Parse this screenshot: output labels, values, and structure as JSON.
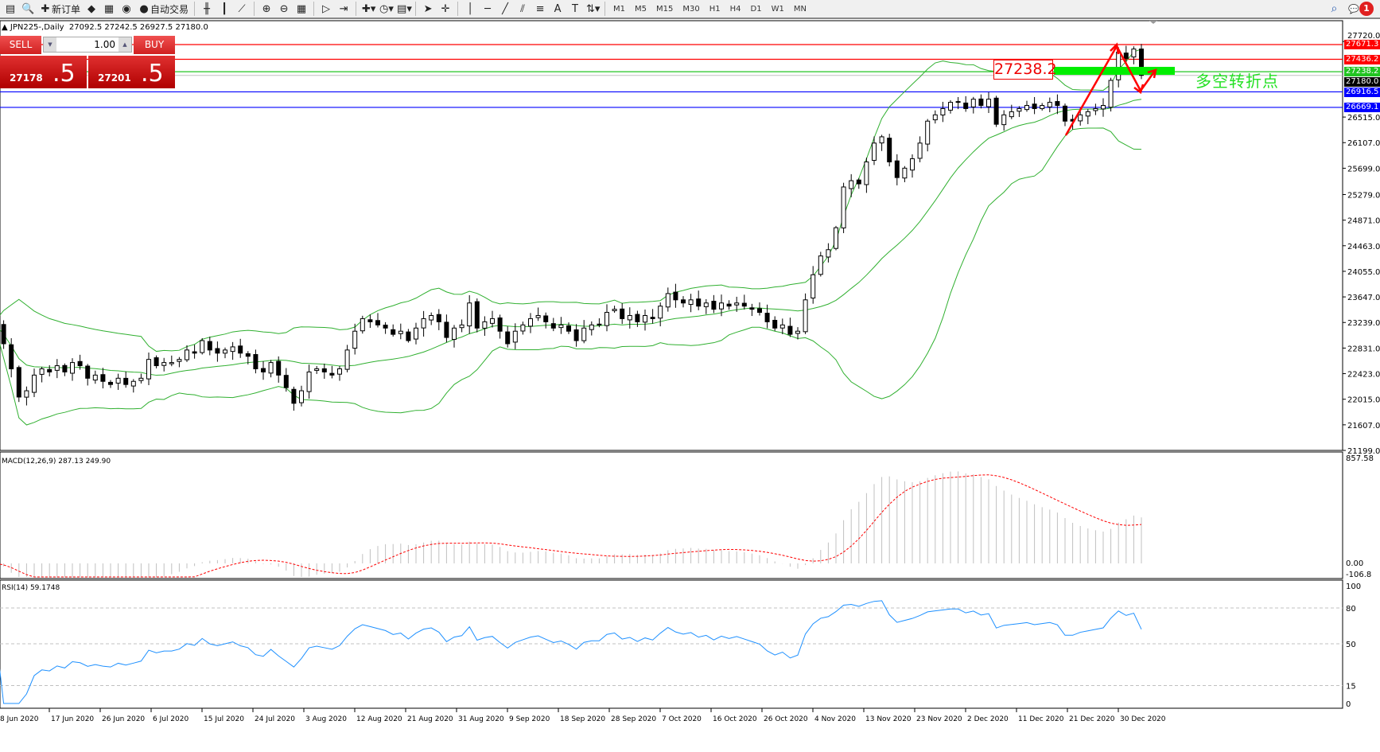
{
  "toolbar": {
    "icons": [
      {
        "name": "new-chart-icon",
        "glyph": "▤"
      },
      {
        "name": "data-window-icon",
        "glyph": "🔍"
      },
      {
        "name": "new-order-icon",
        "glyph": "✚",
        "label": "新订单"
      },
      {
        "name": "metaeditor-icon",
        "glyph": "◆"
      },
      {
        "name": "navigator-icon",
        "glyph": "▦"
      },
      {
        "name": "signals-icon",
        "glyph": "◉"
      },
      {
        "name": "auto-trading-icon",
        "glyph": "●",
        "label": "自动交易"
      },
      {
        "sep": true
      },
      {
        "name": "bar-chart-icon",
        "glyph": "╫"
      },
      {
        "name": "candlestick-icon",
        "glyph": "┃"
      },
      {
        "name": "line-chart-icon",
        "glyph": "⟋"
      },
      {
        "sep": true
      },
      {
        "name": "zoom-in-icon",
        "glyph": "⊕"
      },
      {
        "name": "zoom-out-icon",
        "glyph": "⊖"
      },
      {
        "name": "tile-windows-icon",
        "glyph": "▦"
      },
      {
        "sep": true
      },
      {
        "name": "autoscroll-icon",
        "glyph": "▷"
      },
      {
        "name": "chart-shift-icon",
        "glyph": "⇥"
      },
      {
        "sep": true
      },
      {
        "name": "indicators-icon",
        "glyph": "✚▾"
      },
      {
        "name": "periods-icon",
        "glyph": "◷▾"
      },
      {
        "name": "templates-icon",
        "glyph": "▤▾"
      },
      {
        "sep": true
      },
      {
        "name": "cursor-icon",
        "glyph": "➤"
      },
      {
        "name": "crosshair-icon",
        "glyph": "✛"
      },
      {
        "sep": true
      },
      {
        "name": "vertical-line-icon",
        "glyph": "│"
      },
      {
        "name": "horizontal-line-icon",
        "glyph": "─"
      },
      {
        "name": "trendline-icon",
        "glyph": "╱"
      },
      {
        "name": "equidistant-channel-icon",
        "glyph": "⫽"
      },
      {
        "name": "fibonacci-icon",
        "glyph": "≡"
      },
      {
        "name": "text-icon",
        "glyph": "A"
      },
      {
        "name": "text-label-icon",
        "glyph": "T"
      },
      {
        "name": "arrows-icon",
        "glyph": "⇅▾"
      },
      {
        "sep": true
      }
    ],
    "timeframes": [
      "M1",
      "M5",
      "M15",
      "M30",
      "H1",
      "H4",
      "D1",
      "W1",
      "MN"
    ],
    "notification_count": "1"
  },
  "chart": {
    "title": "JPN225-,Daily  27092.5 27242.5 26927.5 27180.0",
    "trade_panel": {
      "sell_label": "SELL",
      "buy_label": "BUY",
      "lot": "1.00",
      "sell_big": "27178",
      "sell_small": ".5",
      "buy_big": "27201",
      "buy_small": ".5"
    },
    "annotation_label": "27238.2",
    "annotation_text": "多空转折点",
    "hlines": [
      {
        "price": 27671.3,
        "label": "27671.3",
        "color": "#ff0000"
      },
      {
        "price": 27436.2,
        "label": "27436.2",
        "color": "#ff0000"
      },
      {
        "price": 27238.2,
        "label": "27238.2",
        "color": "#22c422"
      },
      {
        "price": 26916.5,
        "label": "26916.5",
        "color": "#0000ff"
      },
      {
        "price": 26669.1,
        "label": "26669.1",
        "color": "#0000ff"
      }
    ],
    "bid_line": {
      "price": 27180.0,
      "label": "27180.0",
      "color": "#c0c0c0"
    },
    "macd_label": "MACD(12,26,9) 287.13 249.90",
    "rsi_label": "RSI(14) 59.1748"
  },
  "chart_data": {
    "type": "candlestick",
    "symbol": "JPN225-",
    "timeframe": "Daily",
    "last_ohlc": {
      "open": 27092.5,
      "high": 27242.5,
      "low": 26927.5,
      "close": 27180.0
    },
    "close": [
      23200,
      22900,
      22500,
      22050,
      22150,
      22400,
      22500,
      22450,
      22550,
      22450,
      22600,
      22550,
      22350,
      22400,
      22300,
      22250,
      22350,
      22250,
      22300,
      22350,
      22650,
      22550,
      22600,
      22600,
      22650,
      22800,
      22750,
      22950,
      22800,
      22750,
      22800,
      22850,
      22750,
      22700,
      22500,
      22450,
      22600,
      22400,
      22200,
      21950,
      22150,
      22450,
      22500,
      22450,
      22400,
      22500,
      22800,
      23100,
      23300,
      23250,
      23200,
      23150,
      23050,
      23100,
      22950,
      23150,
      23300,
      23350,
      23250,
      23000,
      23150,
      23200,
      23550,
      23150,
      23250,
      23300,
      23100,
      22900,
      23100,
      23200,
      23300,
      23350,
      23250,
      23150,
      23200,
      23100,
      22950,
      23150,
      23200,
      23200,
      23400,
      23450,
      23300,
      23350,
      23250,
      23350,
      23300,
      23500,
      23700,
      23600,
      23550,
      23600,
      23500,
      23550,
      23450,
      23550,
      23500,
      23550,
      23500,
      23450,
      23400,
      23250,
      23150,
      23200,
      23050,
      23100,
      23600,
      24000,
      24300,
      24400,
      24750,
      25400,
      25500,
      25450,
      25800,
      26100,
      26200,
      25800,
      25550,
      25700,
      25850,
      26100,
      26450,
      26550,
      26650,
      26750,
      26750,
      26650,
      26800,
      26700,
      26800,
      26400,
      26550,
      26600,
      26650,
      26700,
      26650,
      26700,
      26750,
      26700,
      26450,
      26450,
      26550,
      26600,
      26650,
      26700,
      27100,
      27550,
      27450,
      27600,
      27180
    ],
    "price_axis": [
      "27720.0",
      "26515.0",
      "26107.0",
      "25699.0",
      "25279.0",
      "24871.0",
      "24463.0",
      "24055.0",
      "23647.0",
      "23239.0",
      "22831.0",
      "22423.0",
      "22015.0",
      "21607.0",
      "21199.0"
    ],
    "x_labels": [
      "8 Jun 2020",
      "17 Jun 2020",
      "26 Jun 2020",
      "6 Jul 2020",
      "15 Jul 2020",
      "24 Jul 2020",
      "3 Aug 2020",
      "12 Aug 2020",
      "21 Aug 2020",
      "31 Aug 2020",
      "9 Sep 2020",
      "18 Sep 2020",
      "28 Sep 2020",
      "7 Oct 2020",
      "16 Oct 2020",
      "26 Oct 2020",
      "4 Nov 2020",
      "13 Nov 2020",
      "23 Nov 2020",
      "2 Dec 2020",
      "11 Dec 2020",
      "21 Dec 2020",
      "30 Dec 2020"
    ],
    "indicators": {
      "bollinger": {
        "period": 20,
        "deviation": 2,
        "color": "#30b030"
      },
      "macd": {
        "fast": 12,
        "slow": 26,
        "signal": 9,
        "axis": [
          "857.58",
          "0.00",
          "-106.8"
        ],
        "histogram_color": "#c0c0c0",
        "signal_color": "#ff0000"
      },
      "rsi": {
        "period": 14,
        "levels": [
          "100",
          "80",
          "50",
          "15",
          "0"
        ],
        "color": "#1e90ff"
      }
    },
    "grid": false
  }
}
